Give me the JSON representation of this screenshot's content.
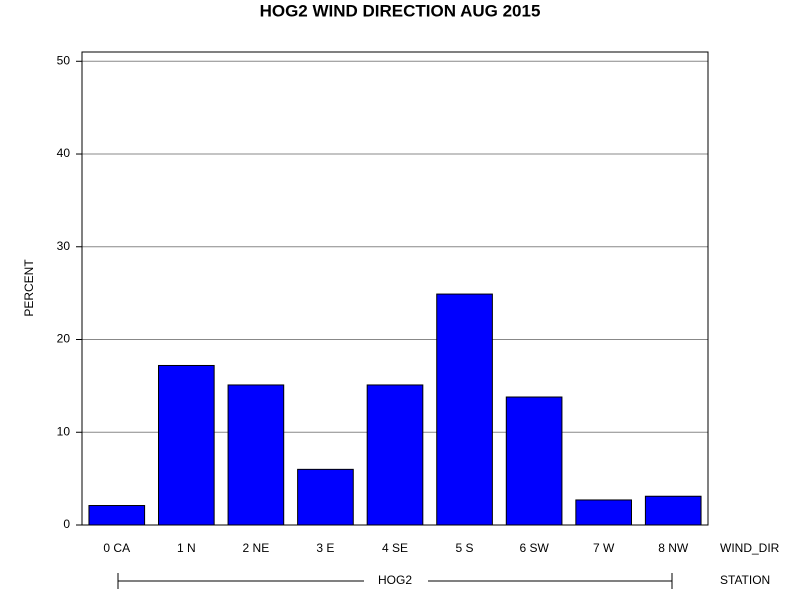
{
  "chart_data": {
    "type": "bar",
    "title": "HOG2 WIND DIRECTION AUG 2015",
    "ylabel": "PERCENT",
    "xlabel": "WIND_DIR",
    "group": {
      "label": "HOG2",
      "axis_label": "STATION"
    },
    "categories": [
      "0 CA",
      "1 N",
      "2 NE",
      "3 E",
      "4 SE",
      "5 S",
      "6 SW",
      "7 W",
      "8 NW"
    ],
    "values": [
      2.1,
      17.2,
      15.1,
      6.0,
      15.1,
      24.9,
      13.8,
      2.7,
      3.1
    ],
    "color": "#0000ff",
    "ylim": [
      0,
      51
    ],
    "yticks": [
      0,
      10,
      20,
      30,
      40,
      50
    ],
    "grid": true
  }
}
